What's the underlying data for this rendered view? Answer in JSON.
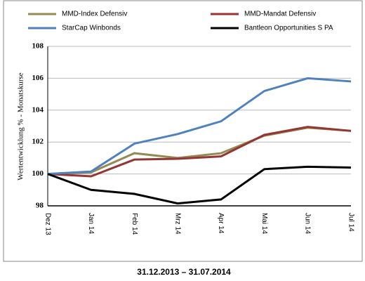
{
  "chart_data": {
    "type": "line",
    "y_label": "Wertentwicklung % - Monatskurse",
    "x_label": "31.12.2013 – 31.07.2014",
    "categories": [
      "Dez 13",
      "Jan 14",
      "Feb 14",
      "Mrz 14",
      "Apr 14",
      "Mai 14",
      "Jun 14",
      "Jul 14"
    ],
    "series": [
      {
        "name": "MMD-Index Defensiv",
        "color": "#948a54",
        "values": [
          100,
          100.1,
          101.3,
          101.0,
          101.3,
          102.4,
          102.9,
          102.7
        ]
      },
      {
        "name": "MMD-Mandat Defensiv",
        "color": "#943634",
        "values": [
          100,
          99.85,
          100.9,
          100.95,
          101.1,
          102.45,
          102.95,
          102.7
        ]
      },
      {
        "name": "StarCap Winbonds",
        "color": "#4f81bd",
        "values": [
          100,
          100.15,
          101.9,
          102.5,
          103.3,
          105.2,
          106.0,
          105.8
        ]
      },
      {
        "name": "Bantleon Opportunities S PA",
        "color": "#000000",
        "values": [
          100,
          99.0,
          98.75,
          98.15,
          98.4,
          100.3,
          100.45,
          100.4
        ]
      }
    ],
    "ylim": [
      98,
      108
    ],
    "yticks": [
      98,
      100,
      102,
      104,
      106,
      108
    ],
    "grid": true
  }
}
